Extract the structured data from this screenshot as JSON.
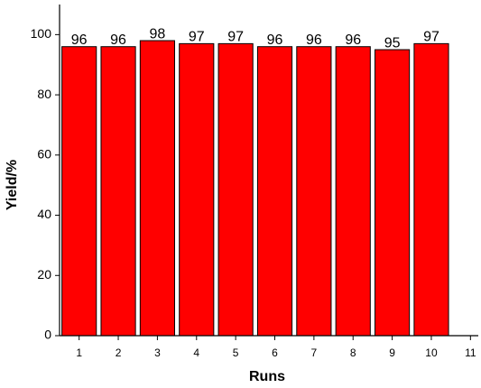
{
  "chart_data": {
    "type": "bar",
    "x_label": "Runs",
    "y_label": "Yield/%",
    "x": [
      1,
      2,
      3,
      4,
      5,
      6,
      7,
      8,
      9,
      10
    ],
    "values": [
      96,
      96,
      98,
      97,
      97,
      96,
      96,
      96,
      95,
      97
    ],
    "color": "#ff0000",
    "xlim": [
      0.5,
      11.2
    ],
    "xticks": [
      1,
      2,
      3,
      4,
      5,
      6,
      7,
      8,
      9,
      10,
      11
    ],
    "ylim": [
      0,
      110
    ],
    "yticks": [
      0,
      20,
      40,
      60,
      80,
      100
    ],
    "grid": false
  }
}
